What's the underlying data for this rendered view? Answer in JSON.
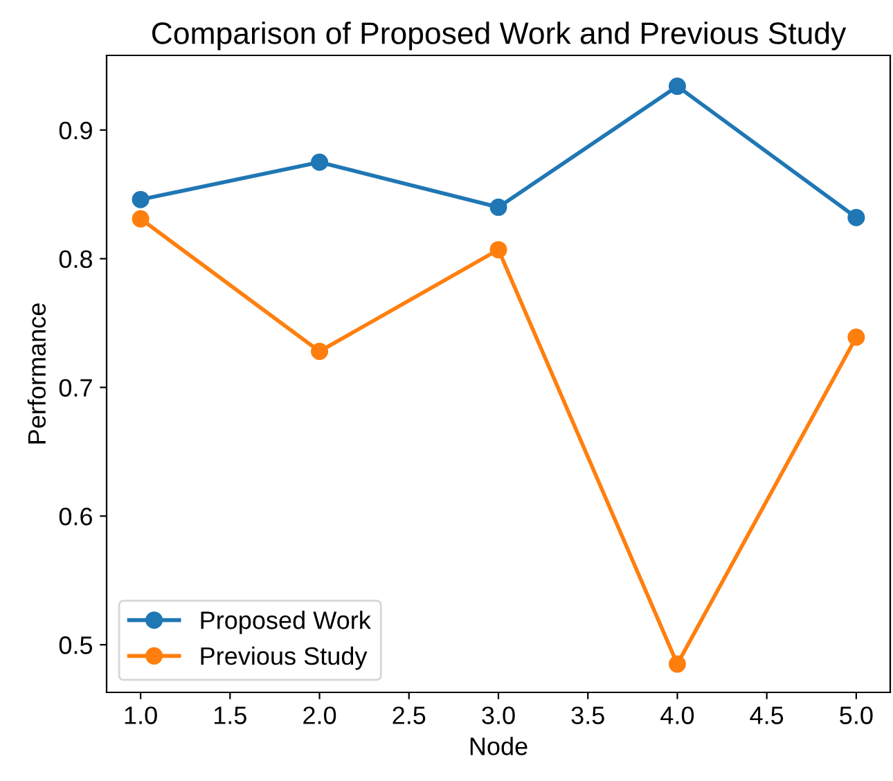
{
  "chart_data": {
    "type": "line",
    "title": "Comparison of Proposed Work and Previous Study",
    "xlabel": "Node",
    "ylabel": "Performance",
    "x": [
      1,
      2,
      3,
      4,
      5
    ],
    "series": [
      {
        "name": "Proposed Work",
        "color": "#1f77b4",
        "values": [
          0.846,
          0.875,
          0.84,
          0.934,
          0.832
        ]
      },
      {
        "name": "Previous Study",
        "color": "#ff7f0e",
        "values": [
          0.831,
          0.728,
          0.807,
          0.485,
          0.739
        ]
      }
    ],
    "xlim": [
      0.81,
      5.19
    ],
    "ylim": [
      0.463,
      0.958
    ],
    "xticks": [
      {
        "value": 1,
        "label": "1.0"
      },
      {
        "value": 1.5,
        "label": "1.5"
      },
      {
        "value": 2,
        "label": "2.0"
      },
      {
        "value": 2.5,
        "label": "2.5"
      },
      {
        "value": 3,
        "label": "3.0"
      },
      {
        "value": 3.5,
        "label": "3.5"
      },
      {
        "value": 4,
        "label": "4.0"
      },
      {
        "value": 4.5,
        "label": "4.5"
      },
      {
        "value": 5,
        "label": "5.0"
      }
    ],
    "yticks": [
      0.5,
      0.6,
      0.7,
      0.8,
      0.9
    ],
    "marker": "circle",
    "line_style": "solid",
    "legend": "bottom left",
    "grid": false
  }
}
